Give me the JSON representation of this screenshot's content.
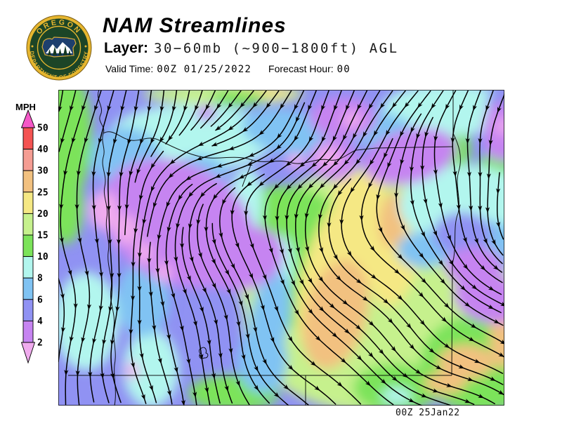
{
  "header": {
    "title": "NAM Streamlines",
    "layer_label": "Layer:",
    "layer_value": "30−60mb (~900−1800ft) AGL",
    "valid_time_label": "Valid Time:",
    "valid_time_value": "00Z 01/25/2022",
    "forecast_hour_label": "Forecast Hour:",
    "forecast_hour_value": "00"
  },
  "logo": {
    "top_text": "OREGON",
    "bottom_text": "DEPARTMENT OF FORESTRY"
  },
  "legend": {
    "units_label": "MPH",
    "ticks": [
      "50",
      "40",
      "30",
      "25",
      "20",
      "15",
      "10",
      "8",
      "6",
      "4",
      "2"
    ],
    "segments": [
      {
        "range": "> 50",
        "color": "#f558c8"
      },
      {
        "range": "40–50",
        "color": "#f45352"
      },
      {
        "range": "30–40",
        "color": "#f59d93"
      },
      {
        "range": "25–30",
        "color": "#f2c180"
      },
      {
        "range": "20–25",
        "color": "#f5e884"
      },
      {
        "range": "15–20",
        "color": "#c6f18d"
      },
      {
        "range": "10–15",
        "color": "#7ce35a"
      },
      {
        "range": "8–10",
        "color": "#b2f6ee"
      },
      {
        "range": "6–8",
        "color": "#80c3f3"
      },
      {
        "range": "4–6",
        "color": "#9092f3"
      },
      {
        "range": "2–4",
        "color": "#c684f1"
      },
      {
        "range": "< 2",
        "color": "#f0abee"
      }
    ]
  },
  "map": {
    "stamp": "00Z 25Jan22",
    "base_color": "#9092f3",
    "region": "Oregon and surrounding Pacific Northwest"
  }
}
